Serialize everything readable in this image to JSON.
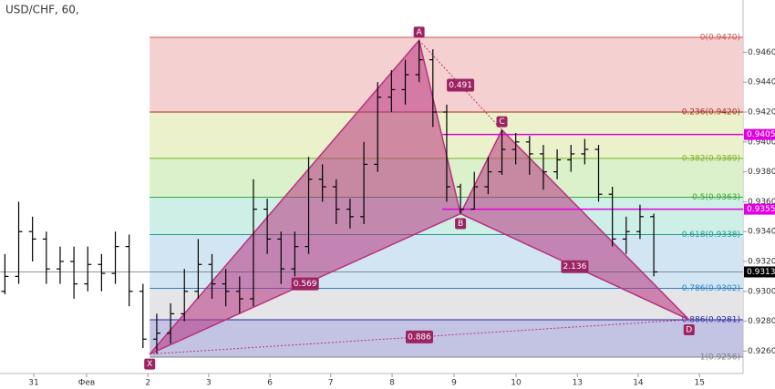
{
  "chart_data": {
    "type": "ohlc",
    "title": "USD/CHF, 60,",
    "color": "#000000",
    "x": [
      0.08,
      0.305,
      0.53,
      0.755,
      0.98,
      1.205,
      1.43,
      1.655,
      1.88,
      2.105,
      2.33,
      2.555,
      2.78,
      3.005,
      3.23,
      3.455,
      3.68,
      3.905,
      4.13,
      4.355,
      4.58,
      4.805,
      5.03,
      5.255,
      5.48,
      5.705,
      5.93,
      6.155,
      6.38,
      6.605,
      6.83,
      7.055,
      7.28,
      7.505,
      7.73,
      7.955,
      8.18,
      8.405,
      8.63,
      8.855,
      9.08,
      9.305,
      9.53,
      9.755,
      9.98,
      10.205,
      10.43,
      10.655
    ],
    "open": [
      0.93,
      0.931,
      0.934,
      0.9335,
      0.9315,
      0.932,
      0.9305,
      0.9318,
      0.9312,
      0.933,
      0.93,
      0.9268,
      0.9272,
      0.9285,
      0.93,
      0.9318,
      0.9305,
      0.93,
      0.9295,
      0.9355,
      0.9335,
      0.9315,
      0.933,
      0.9375,
      0.937,
      0.9355,
      0.935,
      0.9385,
      0.943,
      0.9435,
      0.9445,
      0.9455,
      0.942,
      0.937,
      0.9355,
      0.937,
      0.938,
      0.9395,
      0.94,
      0.9392,
      0.938,
      0.9388,
      0.9392,
      0.9395,
      0.9365,
      0.9335,
      0.934,
      0.935
    ],
    "high": [
      0.9325,
      0.936,
      0.935,
      0.934,
      0.933,
      0.933,
      0.933,
      0.9325,
      0.934,
      0.9338,
      0.9305,
      0.9285,
      0.9292,
      0.9315,
      0.9335,
      0.9325,
      0.9315,
      0.931,
      0.9375,
      0.9362,
      0.934,
      0.934,
      0.939,
      0.9385,
      0.9375,
      0.9362,
      0.94,
      0.944,
      0.9448,
      0.9455,
      0.9468,
      0.9462,
      0.9425,
      0.9372,
      0.938,
      0.939,
      0.9408,
      0.9406,
      0.9404,
      0.9398,
      0.9395,
      0.9398,
      0.9402,
      0.9398,
      0.937,
      0.935,
      0.9358,
      0.9352
    ],
    "low": [
      0.9298,
      0.9305,
      0.932,
      0.9305,
      0.9305,
      0.9295,
      0.93,
      0.93,
      0.9305,
      0.929,
      0.9262,
      0.9258,
      0.9265,
      0.928,
      0.9295,
      0.9295,
      0.929,
      0.9285,
      0.929,
      0.9325,
      0.9305,
      0.931,
      0.9325,
      0.936,
      0.9345,
      0.9342,
      0.9345,
      0.938,
      0.942,
      0.9425,
      0.944,
      0.941,
      0.936,
      0.9352,
      0.9355,
      0.9365,
      0.9378,
      0.9385,
      0.9378,
      0.9368,
      0.9375,
      0.938,
      0.9385,
      0.936,
      0.933,
      0.9325,
      0.9335,
      0.931
    ],
    "close": [
      0.931,
      0.934,
      0.9335,
      0.9315,
      0.932,
      0.9305,
      0.9318,
      0.9312,
      0.933,
      0.93,
      0.9268,
      0.9272,
      0.9285,
      0.93,
      0.9318,
      0.9305,
      0.93,
      0.9295,
      0.9355,
      0.9335,
      0.9315,
      0.933,
      0.9375,
      0.937,
      0.9355,
      0.935,
      0.9385,
      0.943,
      0.9435,
      0.9445,
      0.9455,
      0.942,
      0.937,
      0.9355,
      0.937,
      0.938,
      0.9395,
      0.94,
      0.9392,
      0.938,
      0.9388,
      0.9392,
      0.9395,
      0.9365,
      0.9335,
      0.934,
      0.935,
      0.9313
    ],
    "xlim": [
      0,
      12.11
    ],
    "xticks": [
      {
        "value": 0.55,
        "label": "31"
      },
      {
        "value": 1.41,
        "label": "Фев"
      },
      {
        "value": 2.41,
        "label": "2"
      },
      {
        "value": 3.4,
        "label": "3"
      },
      {
        "value": 4.4,
        "label": "6"
      },
      {
        "value": 5.39,
        "label": "7"
      },
      {
        "value": 6.39,
        "label": "8"
      },
      {
        "value": 7.4,
        "label": "9"
      },
      {
        "value": 8.41,
        "label": "10"
      },
      {
        "value": 9.41,
        "label": "13"
      },
      {
        "value": 10.4,
        "label": "14"
      },
      {
        "value": 11.4,
        "label": "15"
      }
    ],
    "ylim": [
      0.9245,
      0.9495
    ],
    "yticks": [
      {
        "value": 0.926,
        "label": "0.9260"
      },
      {
        "value": 0.928,
        "label": "0.9280"
      },
      {
        "value": 0.93,
        "label": "0.9300"
      },
      {
        "value": 0.932,
        "label": "0.9320"
      },
      {
        "value": 0.934,
        "label": "0.9340"
      },
      {
        "value": 0.936,
        "label": "0.9360"
      },
      {
        "value": 0.938,
        "label": "0.9380"
      },
      {
        "value": 0.94,
        "label": "0.9400"
      },
      {
        "value": 0.942,
        "label": "0.9420"
      },
      {
        "value": 0.944,
        "label": "0.9440"
      },
      {
        "value": 0.946,
        "label": "0.9460"
      }
    ],
    "fib_levels": [
      {
        "label": "0(0.9470)",
        "value": 0.947,
        "color": "#d05050"
      },
      {
        "label": "0.236(0.9420)",
        "value": 0.942,
        "color": "#a0301a"
      },
      {
        "label": "0.382(0.9389)",
        "value": 0.9389,
        "color": "#7fb02a"
      },
      {
        "label": "0.5(0.9363)",
        "value": 0.9363,
        "color": "#3aa43a"
      },
      {
        "label": "0.618(0.9338)",
        "value": 0.9338,
        "color": "#1e9a8a"
      },
      {
        "label": "0.786(0.9302)",
        "value": 0.9302,
        "color": "#2a7fc0"
      },
      {
        "label": "0.886(0.9281)",
        "value": 0.9281,
        "color": "#2b2ba0"
      },
      {
        "label": "1(0.9256)",
        "value": 0.9256,
        "color": "#808080"
      }
    ],
    "fib_fills": [
      "#f3c8c8",
      "#e6efc2",
      "#d3eec2",
      "#c6ece0",
      "#c9e2f0",
      "#e0e0e3",
      "#b9b9df"
    ],
    "pattern": {
      "color": "#b8337f",
      "points": [
        {
          "label": "X",
          "x": 2.44,
          "y": 0.9258
        },
        {
          "label": "A",
          "x": 6.83,
          "y": 0.9468
        },
        {
          "label": "B",
          "x": 7.505,
          "y": 0.9352
        },
        {
          "label": "C",
          "x": 8.18,
          "y": 0.9408
        },
        {
          "label": "D",
          "x": 11.23,
          "y": 0.9281
        }
      ],
      "ratios": {
        "XB": 0.569,
        "AC": 0.491,
        "BD": 2.136,
        "XD": 0.886
      }
    },
    "price_lines": [
      {
        "value": 0.9405,
        "color": "#e000e0"
      },
      {
        "value": 0.9355,
        "color": "#e000e0"
      }
    ],
    "last_price": 0.9313
  }
}
